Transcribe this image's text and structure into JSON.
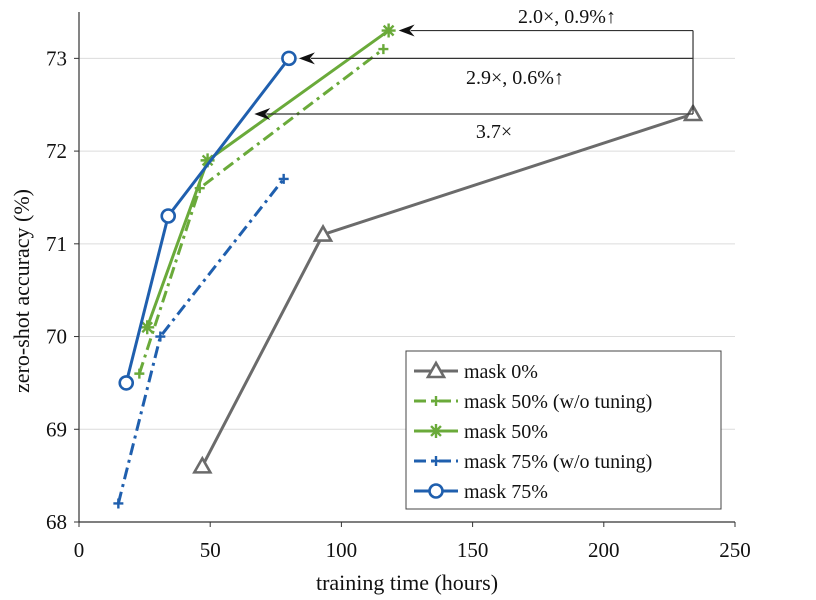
{
  "chart_data": {
    "type": "line",
    "xlabel": "training time (hours)",
    "ylabel": "zero-shot accuracy (%)",
    "xlim": [
      0,
      250
    ],
    "ylim": [
      68,
      73.5
    ],
    "xticks": [
      0,
      50,
      100,
      150,
      200,
      250
    ],
    "yticks": [
      68,
      69,
      70,
      71,
      72,
      73
    ],
    "grid": "horizontal",
    "legend_position": "bottom-right",
    "series": [
      {
        "name": "mask 0%",
        "color": "#6b6b6b",
        "line": "solid",
        "marker": "triangle",
        "x": [
          47,
          93,
          234
        ],
        "y": [
          68.6,
          71.1,
          72.4
        ]
      },
      {
        "name": "mask 50% (w/o tuning)",
        "color": "#6aaa3a",
        "line": "dashdot",
        "marker": "plus",
        "x": [
          23,
          46,
          116
        ],
        "y": [
          69.6,
          71.6,
          73.1
        ]
      },
      {
        "name": "mask 50%",
        "color": "#6aaa3a",
        "line": "solid",
        "marker": "asterisk",
        "x": [
          26,
          49,
          118
        ],
        "y": [
          70.1,
          71.9,
          73.3
        ]
      },
      {
        "name": "mask 75% (w/o tuning)",
        "color": "#1f5fae",
        "line": "dashdot",
        "marker": "plus",
        "x": [
          15,
          31,
          78
        ],
        "y": [
          68.2,
          70.0,
          71.7
        ]
      },
      {
        "name": "mask 75%",
        "color": "#1f5fae",
        "line": "solid",
        "marker": "circle",
        "x": [
          18,
          34,
          80
        ],
        "y": [
          69.5,
          71.3,
          73.0
        ]
      }
    ],
    "annotations": [
      {
        "text": "2.0×, 0.9%↑",
        "from": [
          234,
          72.4
        ],
        "to": [
          118,
          73.3
        ]
      },
      {
        "text": "2.9×, 0.6%↑",
        "from": [
          234,
          72.4
        ],
        "to": [
          80,
          73.0
        ]
      },
      {
        "text": "3.7×",
        "from": [
          234,
          72.4
        ],
        "to": [
          63,
          72.4
        ]
      }
    ]
  }
}
